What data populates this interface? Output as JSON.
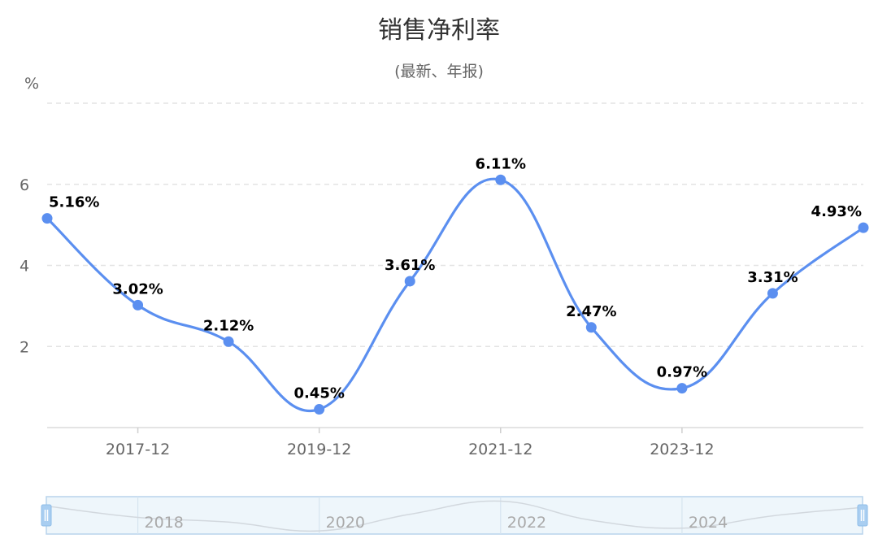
{
  "chart_data": {
    "type": "line",
    "title": "销售净利率",
    "subtitle": "(最新、年报)",
    "ylabel": "%",
    "categories": [
      "2016-12",
      "2017-12",
      "2018-12",
      "2019-12",
      "2020-12",
      "2021-12",
      "2022-12",
      "2023-12",
      "2024-12",
      "2025-12"
    ],
    "x_tick_labels": [
      "2017-12",
      "2019-12",
      "2021-12",
      "2023-12"
    ],
    "series": [
      {
        "values": [
          5.16,
          3.02,
          2.12,
          0.45,
          3.61,
          6.11,
          2.47,
          0.97,
          3.31,
          4.93
        ],
        "labels": [
          "5.16%",
          "3.02%",
          "2.12%",
          "0.45%",
          "3.61%",
          "6.11%",
          "2.47%",
          "0.97%",
          "3.31%",
          "4.93%"
        ],
        "color": "#5b8ff0"
      }
    ],
    "y_ticks": [
      "2",
      "4",
      "6"
    ],
    "ylim": [
      0,
      8
    ],
    "grid": true,
    "zoom_labels": [
      "2018",
      "2020",
      "2022",
      "2024"
    ]
  }
}
